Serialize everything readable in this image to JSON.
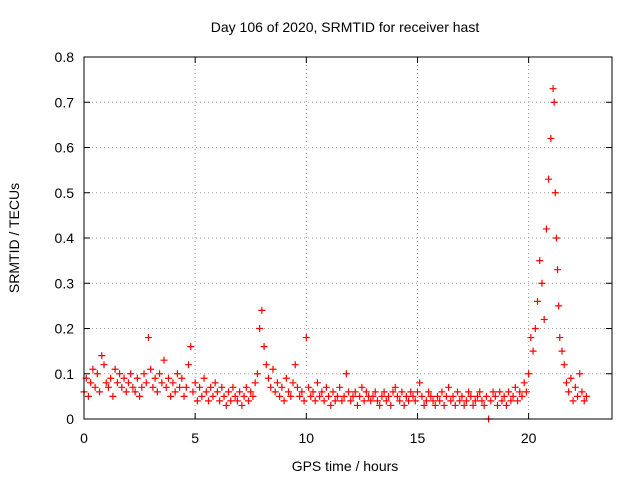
{
  "chart_data": {
    "type": "scatter",
    "title": "Day 106 of 2020, SRMTID for receiver hast",
    "xlabel": "GPS time / hours",
    "ylabel": "SRMTID / TECUs",
    "xlim": [
      0,
      23.75
    ],
    "ylim": [
      0,
      0.8
    ],
    "xticks": [
      0,
      5,
      10,
      15,
      20
    ],
    "yticks": [
      0,
      0.1,
      0.2,
      0.3,
      0.4,
      0.5,
      0.6,
      0.7,
      0.8
    ],
    "ytick_labels": [
      "0",
      "0.1",
      "0.2",
      "0.3",
      "0.4",
      "0.5",
      "0.6",
      "0.7",
      "0.8"
    ],
    "grid": true,
    "marker": "+",
    "marker_color": "#ff0000",
    "series": [
      {
        "name": "SRMTID",
        "x": [
          0.0,
          0.1,
          0.2,
          0.3,
          0.4,
          0.5,
          0.6,
          0.7,
          0.8,
          0.9,
          1.0,
          1.1,
          1.2,
          1.3,
          1.4,
          1.5,
          1.6,
          1.7,
          1.8,
          1.9,
          2.0,
          2.1,
          2.2,
          2.3,
          2.4,
          2.5,
          2.6,
          2.7,
          2.8,
          2.9,
          3.0,
          3.1,
          3.2,
          3.3,
          3.4,
          3.5,
          3.6,
          3.7,
          3.8,
          3.9,
          4.0,
          4.1,
          4.2,
          4.3,
          4.4,
          4.5,
          4.6,
          4.7,
          4.8,
          4.9,
          5.0,
          5.1,
          5.2,
          5.3,
          5.4,
          5.5,
          5.6,
          5.7,
          5.8,
          5.9,
          6.0,
          6.1,
          6.2,
          6.3,
          6.4,
          6.5,
          6.6,
          6.7,
          6.8,
          6.9,
          7.0,
          7.1,
          7.2,
          7.3,
          7.4,
          7.5,
          7.6,
          7.7,
          7.8,
          7.9,
          8.0,
          8.1,
          8.2,
          8.3,
          8.4,
          8.5,
          8.6,
          8.7,
          8.8,
          8.9,
          9.0,
          9.1,
          9.2,
          9.3,
          9.4,
          9.5,
          9.6,
          9.7,
          9.8,
          9.9,
          10.0,
          10.1,
          10.2,
          10.3,
          10.4,
          10.5,
          10.6,
          10.7,
          10.8,
          10.9,
          11.0,
          11.1,
          11.2,
          11.3,
          11.4,
          11.5,
          11.6,
          11.7,
          11.8,
          11.9,
          12.0,
          12.1,
          12.2,
          12.3,
          12.4,
          12.5,
          12.6,
          12.7,
          12.8,
          12.9,
          13.0,
          13.1,
          13.2,
          13.3,
          13.4,
          13.5,
          13.6,
          13.7,
          13.8,
          13.9,
          14.0,
          14.1,
          14.2,
          14.3,
          14.4,
          14.5,
          14.6,
          14.7,
          14.8,
          14.9,
          15.0,
          15.1,
          15.2,
          15.3,
          15.4,
          15.5,
          15.6,
          15.7,
          15.8,
          15.9,
          16.0,
          16.1,
          16.2,
          16.3,
          16.4,
          16.5,
          16.6,
          16.7,
          16.8,
          16.9,
          17.0,
          17.1,
          17.2,
          17.3,
          17.4,
          17.5,
          17.6,
          17.7,
          17.8,
          17.9,
          18.0,
          18.1,
          18.2,
          18.3,
          18.4,
          18.5,
          18.6,
          18.7,
          18.8,
          18.9,
          19.0,
          19.1,
          19.2,
          19.3,
          19.4,
          19.5,
          19.6,
          19.7,
          19.8,
          19.9,
          20.0,
          20.1,
          20.2,
          20.3,
          20.4,
          20.5,
          20.6,
          20.7,
          20.8,
          20.9,
          21.0,
          21.1,
          21.15,
          21.2,
          21.25,
          21.3,
          21.35,
          21.4,
          21.5,
          21.6,
          21.7,
          21.8,
          21.9,
          22.0,
          22.1,
          22.2,
          22.3,
          22.4,
          22.5,
          22.6
        ],
        "y": [
          0.06,
          0.09,
          0.05,
          0.08,
          0.11,
          0.07,
          0.1,
          0.06,
          0.14,
          0.12,
          0.08,
          0.07,
          0.09,
          0.05,
          0.11,
          0.08,
          0.1,
          0.07,
          0.09,
          0.06,
          0.08,
          0.1,
          0.07,
          0.06,
          0.09,
          0.05,
          0.07,
          0.1,
          0.08,
          0.18,
          0.11,
          0.07,
          0.09,
          0.06,
          0.1,
          0.08,
          0.13,
          0.07,
          0.09,
          0.05,
          0.08,
          0.06,
          0.1,
          0.07,
          0.09,
          0.05,
          0.07,
          0.12,
          0.16,
          0.06,
          0.08,
          0.04,
          0.07,
          0.05,
          0.09,
          0.06,
          0.04,
          0.07,
          0.05,
          0.08,
          0.06,
          0.04,
          0.07,
          0.05,
          0.03,
          0.06,
          0.04,
          0.07,
          0.05,
          0.04,
          0.06,
          0.03,
          0.05,
          0.07,
          0.04,
          0.06,
          0.05,
          0.08,
          0.1,
          0.2,
          0.24,
          0.16,
          0.12,
          0.09,
          0.07,
          0.11,
          0.06,
          0.08,
          0.05,
          0.07,
          0.04,
          0.09,
          0.06,
          0.05,
          0.08,
          0.12,
          0.07,
          0.05,
          0.06,
          0.04,
          0.18,
          0.07,
          0.05,
          0.06,
          0.04,
          0.08,
          0.05,
          0.06,
          0.04,
          0.07,
          0.05,
          0.03,
          0.06,
          0.04,
          0.05,
          0.07,
          0.04,
          0.05,
          0.1,
          0.06,
          0.04,
          0.05,
          0.06,
          0.03,
          0.05,
          0.07,
          0.04,
          0.06,
          0.05,
          0.04,
          0.05,
          0.06,
          0.04,
          0.03,
          0.05,
          0.06,
          0.04,
          0.05,
          0.03,
          0.06,
          0.07,
          0.05,
          0.04,
          0.06,
          0.03,
          0.05,
          0.04,
          0.06,
          0.05,
          0.04,
          0.06,
          0.08,
          0.05,
          0.03,
          0.04,
          0.06,
          0.05,
          0.04,
          0.03,
          0.05,
          0.04,
          0.06,
          0.03,
          0.05,
          0.07,
          0.04,
          0.05,
          0.03,
          0.06,
          0.04,
          0.05,
          0.03,
          0.04,
          0.06,
          0.05,
          0.03,
          0.04,
          0.05,
          0.06,
          0.04,
          0.03,
          0.05,
          0.0,
          0.04,
          0.06,
          0.05,
          0.03,
          0.06,
          0.04,
          0.05,
          0.03,
          0.06,
          0.04,
          0.05,
          0.07,
          0.04,
          0.06,
          0.05,
          0.08,
          0.06,
          0.1,
          0.18,
          0.15,
          0.2,
          0.26,
          0.35,
          0.3,
          0.22,
          0.42,
          0.53,
          0.62,
          0.73,
          0.7,
          0.5,
          0.4,
          0.33,
          0.25,
          0.18,
          0.15,
          0.12,
          0.08,
          0.06,
          0.09,
          0.04,
          0.07,
          0.05,
          0.1,
          0.06,
          0.04,
          0.05
        ]
      }
    ]
  }
}
